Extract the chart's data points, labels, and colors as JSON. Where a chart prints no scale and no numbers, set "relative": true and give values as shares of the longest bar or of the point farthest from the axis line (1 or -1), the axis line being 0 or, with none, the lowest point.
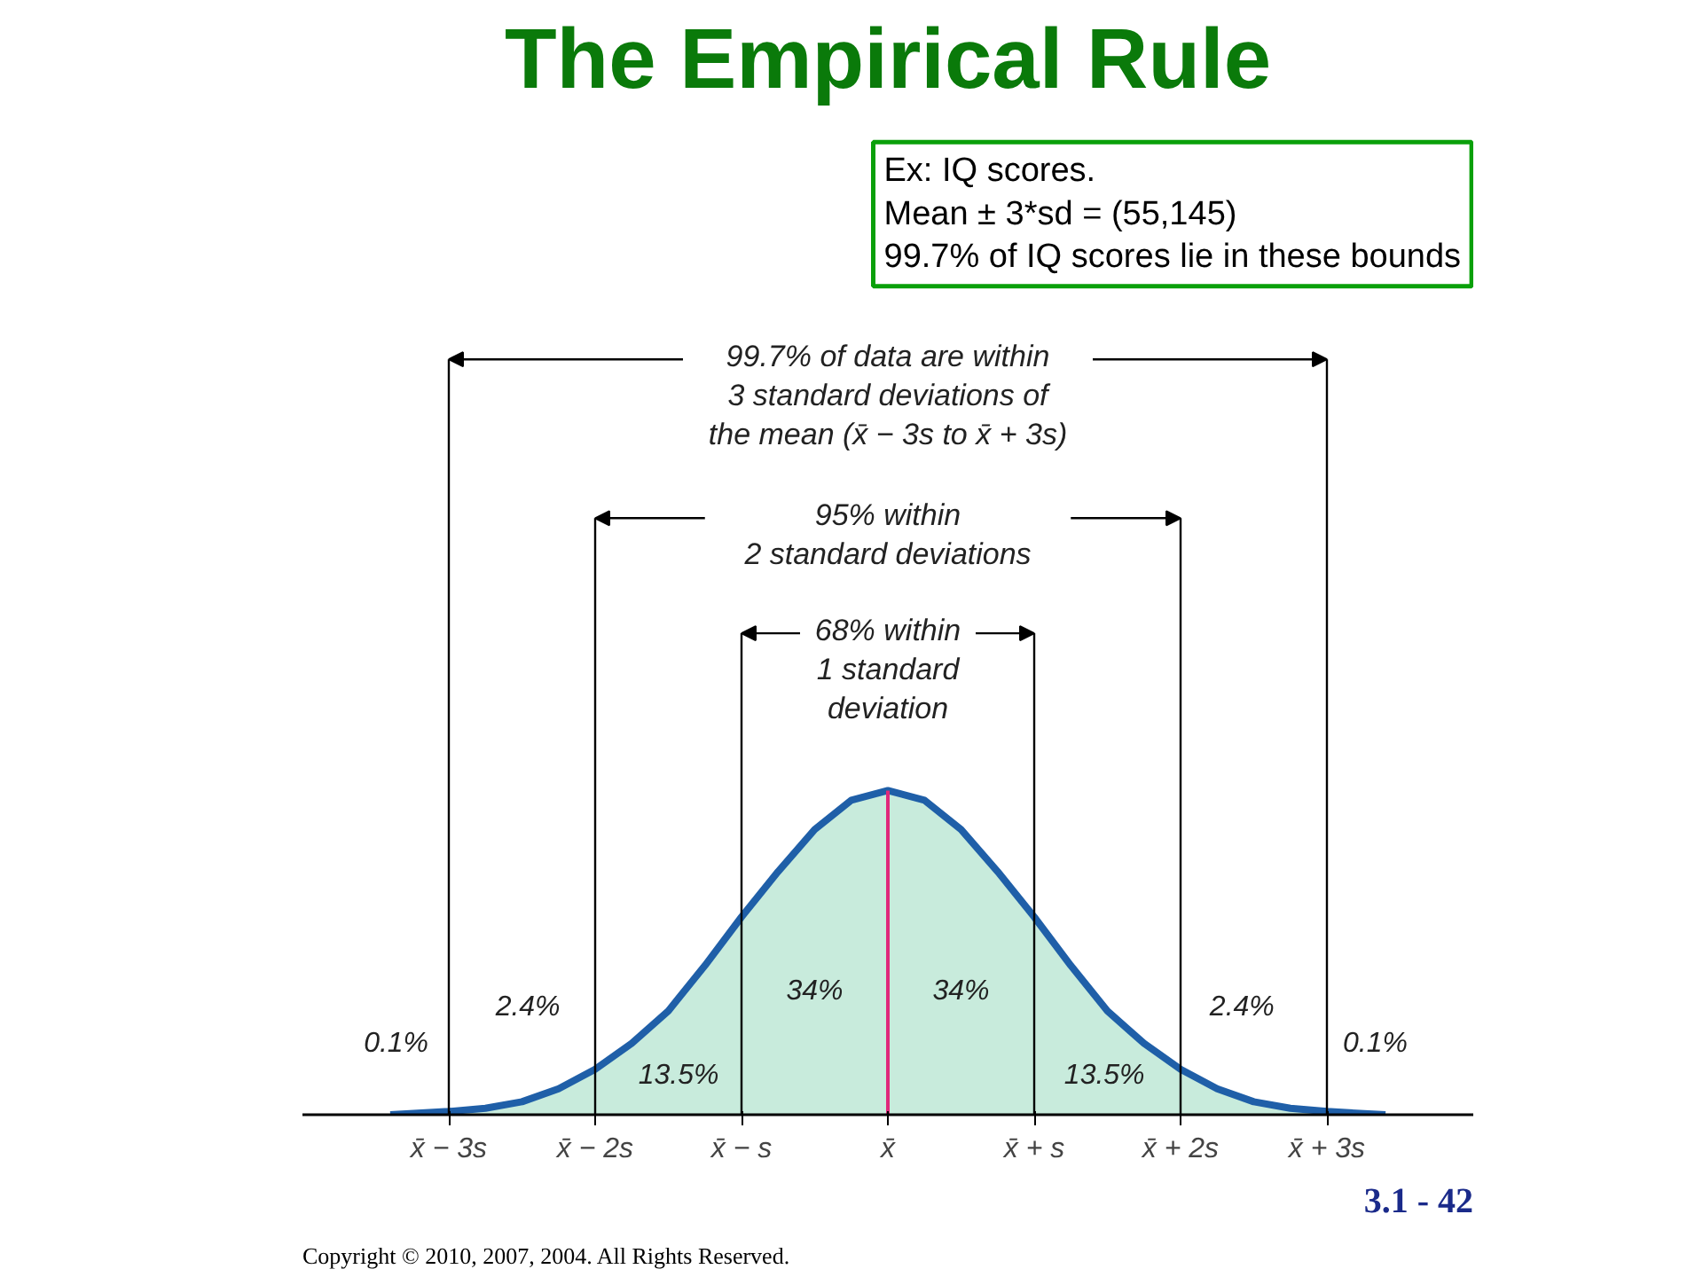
{
  "chart_data": {
    "type": "area",
    "title": "The Empirical Rule",
    "relative": true,
    "xlim": [
      -4,
      4
    ],
    "xticks": [
      {
        "value": -3,
        "label": "x̄ − 3s"
      },
      {
        "value": -2,
        "label": "x̄ − 2s"
      },
      {
        "value": -1,
        "label": "x̄ − s"
      },
      {
        "value": 0,
        "label": "x̄"
      },
      {
        "value": 1,
        "label": "x̄ + s"
      },
      {
        "value": 2,
        "label": "x̄ + 2s"
      },
      {
        "value": 3,
        "label": "x̄ + 3s"
      }
    ],
    "series": [
      {
        "type": "area",
        "color": "#c8ebdc",
        "x": [
          -3,
          -2.75,
          -2.5,
          -2.25,
          -2,
          -1.75,
          -1.5,
          -1.25,
          -1,
          -0.75,
          -0.5,
          -0.25,
          0,
          0.25,
          0.5,
          0.75,
          1,
          1.25,
          1.5,
          1.75,
          2,
          2.25,
          2.5,
          2.75,
          3
        ],
        "values": [
          0.01,
          0.02,
          0.04,
          0.08,
          0.14,
          0.22,
          0.32,
          0.46,
          0.61,
          0.75,
          0.88,
          0.97,
          1,
          0.97,
          0.88,
          0.75,
          0.61,
          0.46,
          0.32,
          0.22,
          0.14,
          0.08,
          0.04,
          0.02,
          0.01
        ]
      },
      {
        "type": "line",
        "color": "#1f5fa8",
        "x": [
          -3.4,
          -3,
          -2.75,
          -2.5,
          -2.25,
          -2,
          -1.75,
          -1.5,
          -1.25,
          -1,
          -0.75,
          -0.5,
          -0.25,
          0,
          0.25,
          0.5,
          0.75,
          1,
          1.25,
          1.5,
          1.75,
          2,
          2.25,
          2.5,
          2.75,
          3,
          3.4
        ],
        "values": [
          0,
          0.01,
          0.02,
          0.04,
          0.08,
          0.14,
          0.22,
          0.32,
          0.46,
          0.61,
          0.75,
          0.88,
          0.97,
          1,
          0.97,
          0.88,
          0.75,
          0.61,
          0.46,
          0.32,
          0.22,
          0.14,
          0.08,
          0.04,
          0.02,
          0.01,
          0
        ]
      }
    ],
    "ref_lines": [
      {
        "axis": "x",
        "value": -3,
        "color": "#000000"
      },
      {
        "axis": "x",
        "value": -2,
        "color": "#000000"
      },
      {
        "axis": "x",
        "value": -1,
        "color": "#000000"
      },
      {
        "axis": "x",
        "value": 0,
        "color": "#e0287a"
      },
      {
        "axis": "x",
        "value": 1,
        "color": "#000000"
      },
      {
        "axis": "x",
        "value": 2,
        "color": "#000000"
      },
      {
        "axis": "x",
        "value": 3,
        "color": "#000000"
      }
    ],
    "annotations": [
      "Ex: IQ scores.\nMean ± 3*sd = (55,145)\n99.7% of IQ scores lie in these bounds",
      "Copyright © 2010, 2007, 2004. All Rights Reserved.",
      "3.1 - 42",
      "99.7% of data are within\n3 standard deviations of\nthe mean (x̄ − 3s to x̄ + 3s)",
      "95% within\n2 standard deviations",
      "68% within\n1 standard\ndeviation",
      "34%",
      "34%",
      "13.5%",
      "13.5%",
      "2.4%",
      "2.4%",
      "0.1%",
      "0.1%"
    ]
  }
}
